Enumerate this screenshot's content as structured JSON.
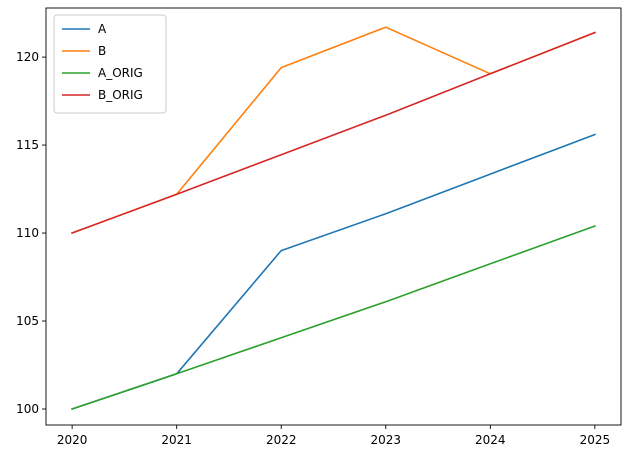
{
  "chart_data": {
    "type": "line",
    "x": [
      2020,
      2021,
      2022,
      2023,
      2024,
      2025
    ],
    "series": [
      {
        "name": "A",
        "color": "#1f77b4",
        "values": [
          100,
          102,
          109,
          111.1,
          113.35,
          115.6
        ]
      },
      {
        "name": "B",
        "color": "#ff7f0e",
        "values": [
          110,
          112.2,
          119.4,
          121.7,
          119.05,
          121.4
        ]
      },
      {
        "name": "A_ORIG",
        "color": "#2ca02c",
        "values": [
          100,
          102,
          104.05,
          106.1,
          108.25,
          110.4
        ]
      },
      {
        "name": "B_ORIG",
        "color": "#d62728",
        "values": [
          110,
          112.2,
          114.45,
          116.7,
          119.05,
          121.4
        ]
      }
    ],
    "xlim": [
      2019.75,
      2025.25
    ],
    "ylim": [
      99.09,
      122.79
    ],
    "xticks": [
      "2020",
      "2021",
      "2022",
      "2023",
      "2024",
      "2025"
    ],
    "yticks": [
      100,
      105,
      110,
      115,
      120
    ],
    "legend_position": "upper-left",
    "grid": false,
    "title": "",
    "xlabel": "",
    "ylabel": ""
  }
}
